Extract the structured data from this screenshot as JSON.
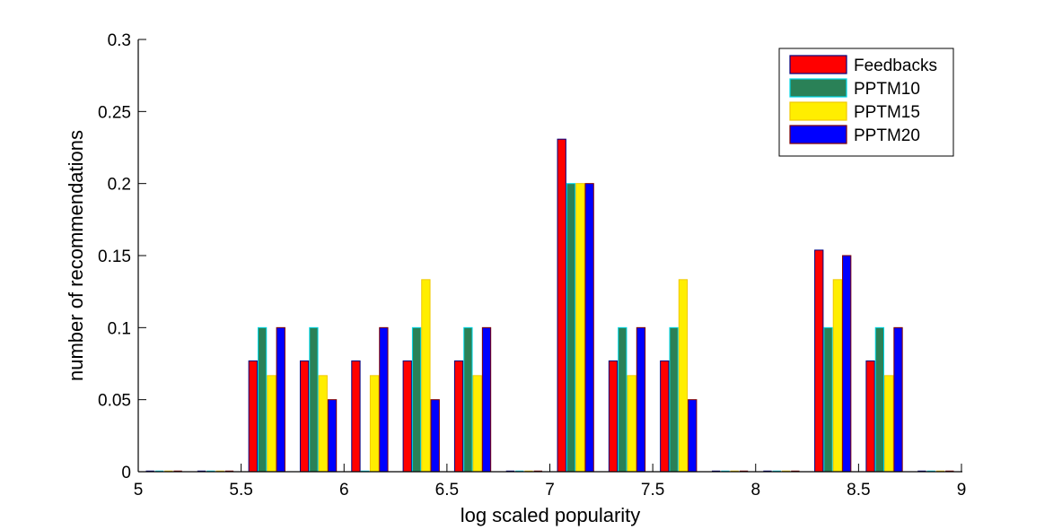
{
  "chart_data": {
    "type": "bar",
    "title": "",
    "xlabel": "log scaled popularity",
    "ylabel": "number of recommendations",
    "xlim": [
      5,
      9
    ],
    "ylim": [
      0,
      0.3
    ],
    "xticks": [
      "5",
      "5.5",
      "6",
      "6.5",
      "7",
      "7.5",
      "8",
      "8.5",
      "9"
    ],
    "xtick_values": [
      5,
      5.5,
      6,
      6.5,
      7,
      7.5,
      8,
      8.5,
      9
    ],
    "yticks": [
      "0",
      "0.05",
      "0.1",
      "0.15",
      "0.2",
      "0.25",
      "0.3"
    ],
    "ytick_values": [
      0,
      0.05,
      0.1,
      0.15,
      0.2,
      0.25,
      0.3
    ],
    "grid": false,
    "legend_position": "top-right",
    "x": [
      5.125,
      5.375,
      5.625,
      5.875,
      6.125,
      6.375,
      6.625,
      6.875,
      7.125,
      7.375,
      7.625,
      7.875,
      8.125,
      8.375,
      8.625,
      8.875
    ],
    "bin_width": 0.25,
    "series": [
      {
        "name": "Feedbacks",
        "color": "#ff0000",
        "edge": "#000080",
        "values": [
          0,
          0,
          0.0769,
          0.0769,
          0.0769,
          0.0769,
          0.0769,
          0,
          0.2308,
          0.0769,
          0.0769,
          0,
          0,
          0.1538,
          0.0769,
          0
        ]
      },
      {
        "name": "PPTM10",
        "color": "#2a8157",
        "edge": "#00d8e8",
        "values": [
          0,
          0,
          0.1,
          0.1,
          0,
          0.1,
          0.1,
          0,
          0.2,
          0.1,
          0.1,
          0,
          0,
          0.1,
          0.1,
          0
        ]
      },
      {
        "name": "PPTM15",
        "color": "#ffee00",
        "edge": "#f0c800",
        "values": [
          0,
          0,
          0.0667,
          0.0667,
          0.0667,
          0.1333,
          0.0667,
          0,
          0.2,
          0.0667,
          0.1333,
          0,
          0,
          0.1333,
          0.0667,
          0
        ]
      },
      {
        "name": "PPTM20",
        "color": "#0000ff",
        "edge": "#800000",
        "values": [
          0,
          0,
          0.1,
          0.05,
          0.1,
          0.05,
          0.1,
          0,
          0.2,
          0.1,
          0.05,
          0,
          0,
          0.15,
          0.1,
          0
        ]
      }
    ]
  }
}
